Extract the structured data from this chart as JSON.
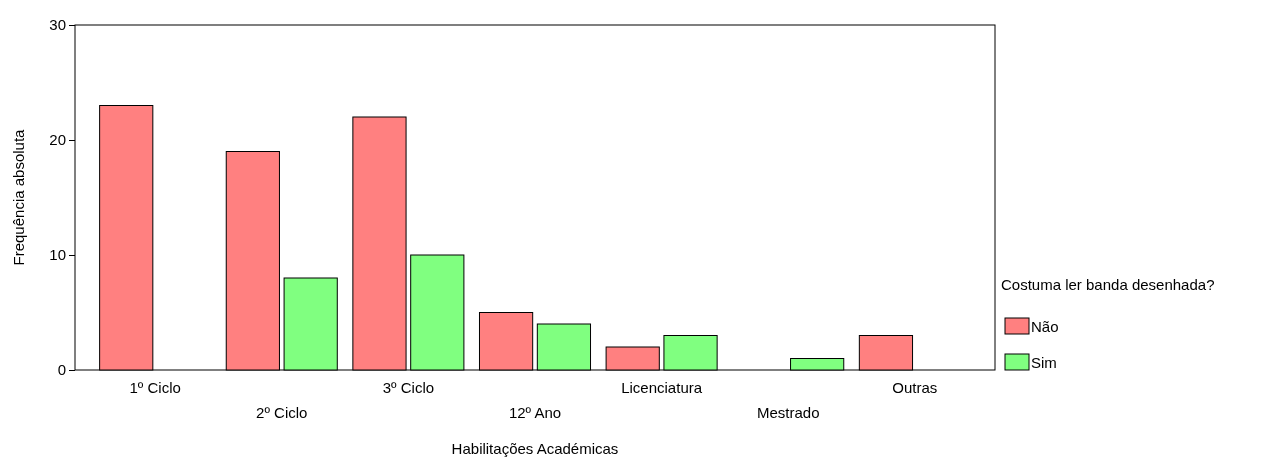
{
  "chart_data": {
    "type": "bar",
    "xlabel": "Habilitações Académicas",
    "ylabel": "Frequência absoluta",
    "legend_title": "Costuma ler banda desenhada?",
    "categories": [
      "1º Ciclo",
      "2º Ciclo",
      "3º Ciclo",
      "12º Ano",
      "Licenciatura",
      "Mestrado",
      "Outras"
    ],
    "series": [
      {
        "name": "Não",
        "color": "#ff8080",
        "values": [
          23,
          19,
          22,
          5,
          2,
          null,
          3
        ]
      },
      {
        "name": "Sim",
        "color": "#80ff80",
        "values": [
          null,
          8,
          10,
          4,
          3,
          1,
          null
        ]
      }
    ],
    "ylim": [
      0,
      30
    ],
    "yticks": [
      0,
      10,
      20,
      30
    ],
    "grid": false,
    "legend": "right"
  }
}
